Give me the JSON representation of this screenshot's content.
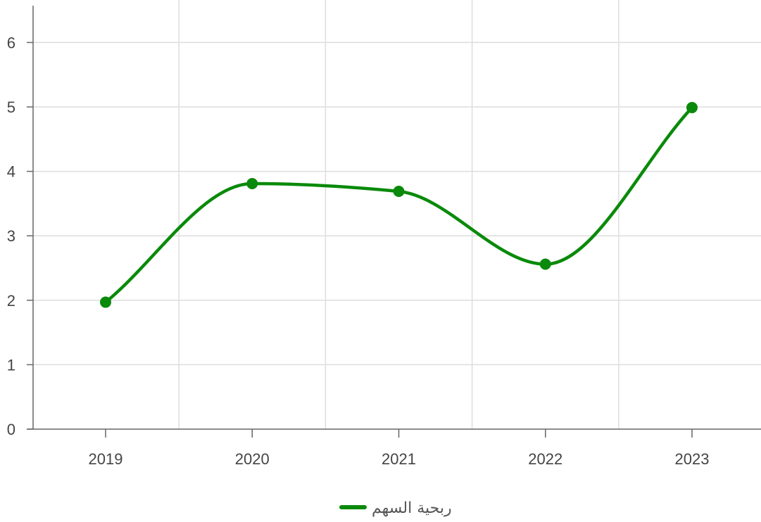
{
  "chart_data": {
    "type": "line",
    "x": [
      "2019",
      "2020",
      "2021",
      "2022",
      "2023"
    ],
    "series": [
      {
        "name": "ربحية السهم",
        "values": [
          1.97,
          3.81,
          3.69,
          2.56,
          4.99
        ],
        "color": "#0a8a0a"
      }
    ],
    "y_ticks": [
      0,
      1,
      2,
      3,
      4,
      5,
      6
    ],
    "ylim": [
      0,
      6.6
    ],
    "grid": true,
    "curve": "smooth",
    "legend_position": "bottom-center",
    "title": "",
    "xlabel": "",
    "ylabel": ""
  },
  "colors": {
    "series": "#0a8a0a",
    "grid": "#dddddd",
    "axis": "#666666",
    "tick_text": "#444444"
  }
}
